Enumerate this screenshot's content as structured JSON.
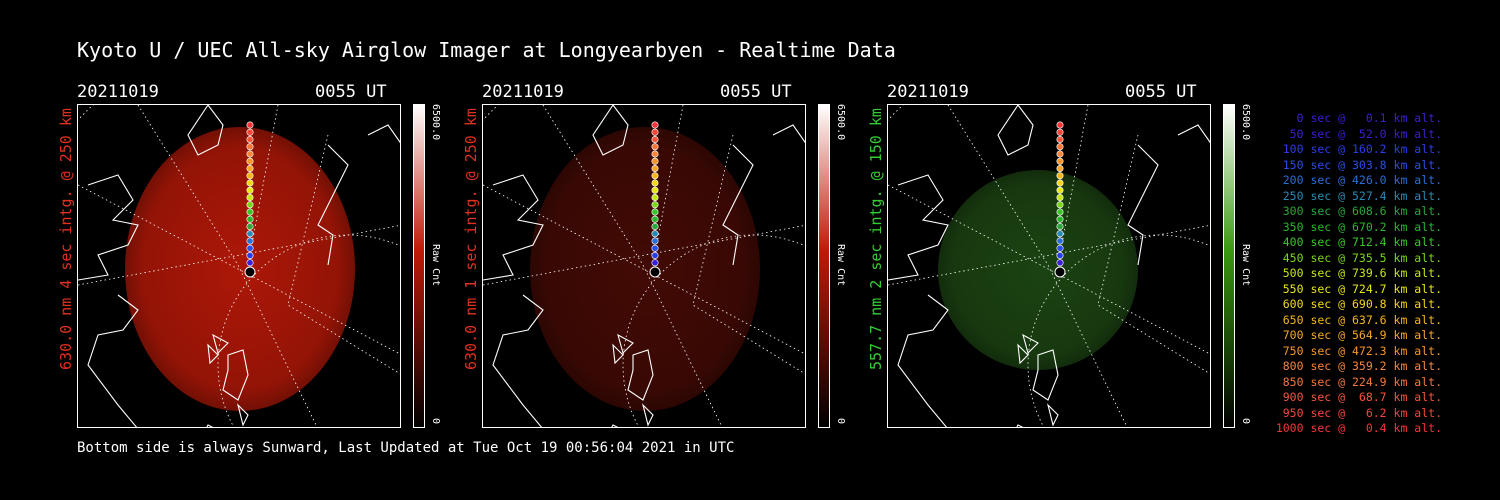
{
  "title": "Kyoto U / UEC All-sky Airglow Imager at Longyearbyen - Realtime Data",
  "panels": [
    {
      "date": "20211019",
      "time": "0055 UT",
      "label": "630.0 nm 4 sec intg. @ 250 km",
      "label_color": "#e0301e",
      "glow": "#c01a08",
      "glow_opacity": 0.9,
      "cbar_max": "6500.0",
      "cbar_unit": "Raw Cnt",
      "cbar_min": "0",
      "cbar_color": "#c01a08"
    },
    {
      "date": "20211019",
      "time": "0055 UT",
      "label": "630.0 nm 1 sec intg. @ 250 km",
      "label_color": "#e0301e",
      "glow": "#4a0b05",
      "glow_opacity": 0.9,
      "cbar_max": "6500.0",
      "cbar_unit": "Raw Cnt",
      "cbar_min": "0",
      "cbar_color": "#c01a08"
    },
    {
      "date": "20211019",
      "time": "0055 UT",
      "label": "557.7 nm 2 sec intg. @ 150 km",
      "label_color": "#33cc33",
      "glow": "#1e4a14",
      "glow_opacity": 0.9,
      "cbar_max": "6500.0",
      "cbar_unit": "Raw Cnt",
      "cbar_min": "0",
      "cbar_color": "#3a9a10"
    }
  ],
  "footer": "Bottom side is always Sunward, Last Updated at Tue Oct 19 00:56:04 2021 in UTC",
  "legend": [
    {
      "text": "0 sec @   0.1 km alt.",
      "color": "#3a1fd6"
    },
    {
      "text": "50 sec @  52.0 km alt.",
      "color": "#3a1fd6"
    },
    {
      "text": "100 sec @ 160.2 km alt.",
      "color": "#2a3ee6"
    },
    {
      "text": "150 sec @ 303.8 km alt.",
      "color": "#2a4ee6"
    },
    {
      "text": "200 sec @ 426.0 km alt.",
      "color": "#2a6ed6"
    },
    {
      "text": "250 sec @ 527.4 km alt.",
      "color": "#2a8ab6"
    },
    {
      "text": "300 sec @ 608.6 km alt.",
      "color": "#2aa63a"
    },
    {
      "text": "350 sec @ 670.2 km alt.",
      "color": "#2ab62a"
    },
    {
      "text": "400 sec @ 712.4 km alt.",
      "color": "#3ac62a"
    },
    {
      "text": "450 sec @ 735.5 km alt.",
      "color": "#7ad61a"
    },
    {
      "text": "500 sec @ 739.6 km alt.",
      "color": "#c6e61a"
    },
    {
      "text": "550 sec @ 724.7 km alt.",
      "color": "#e6e61a"
    },
    {
      "text": "600 sec @ 690.8 km alt.",
      "color": "#f6d61a"
    },
    {
      "text": "650 sec @ 637.6 km alt.",
      "color": "#f6b61a"
    },
    {
      "text": "700 sec @ 564.9 km alt.",
      "color": "#f6a62a"
    },
    {
      "text": "750 sec @ 472.3 km alt.",
      "color": "#f6962a"
    },
    {
      "text": "800 sec @ 359.2 km alt.",
      "color": "#f6863a"
    },
    {
      "text": "850 sec @ 224.9 km alt.",
      "color": "#f6763a"
    },
    {
      "text": "900 sec @  68.7 km alt.",
      "color": "#f6563a"
    },
    {
      "text": "950 sec @   6.2 km alt.",
      "color": "#f6463a"
    },
    {
      "text": "1000 sec @   0.4 km alt.",
      "color": "#f6363a"
    }
  ]
}
